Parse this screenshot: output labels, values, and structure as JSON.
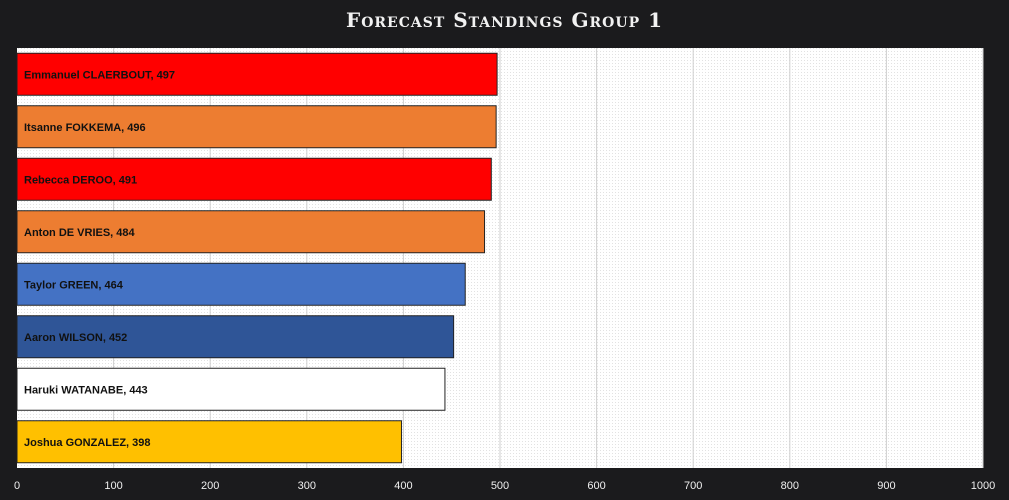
{
  "chart_data": {
    "type": "bar",
    "orientation": "horizontal",
    "title": "Forecast Standings Group 1",
    "categories": [
      "Emmanuel CLAERBOUT, 497",
      "Itsanne FOKKEMA, 496",
      "Rebecca DEROO, 491",
      "Anton DE VRIES, 484",
      "Taylor GREEN, 464",
      "Aaron WILSON, 452",
      "Haruki WATANABE, 443",
      "Joshua GONZALEZ, 398"
    ],
    "values": [
      497,
      496,
      491,
      484,
      464,
      452,
      443,
      398
    ],
    "colors": [
      "#ff0000",
      "#ed7d31",
      "#ff0000",
      "#ed7d31",
      "#4472c4",
      "#2f5597",
      "#ffffff",
      "#ffc000"
    ],
    "xlim": [
      0,
      1000
    ],
    "xticks": [
      "0",
      "100",
      "200",
      "300",
      "400",
      "500",
      "600",
      "700",
      "800",
      "900",
      "1000"
    ],
    "grid": true,
    "legend": "none"
  }
}
